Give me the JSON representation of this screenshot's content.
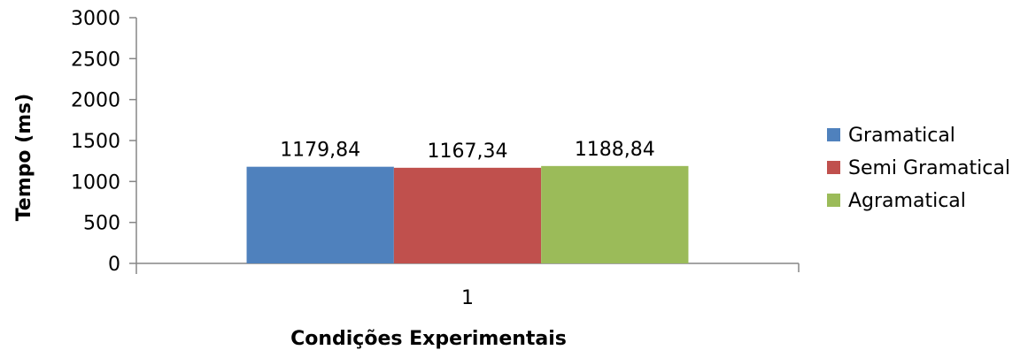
{
  "chart_data": {
    "type": "bar",
    "categories": [
      "1"
    ],
    "series": [
      {
        "name": "Gramatical",
        "values": [
          1179.84
        ],
        "label": "1179,84",
        "color": "#4F81BD"
      },
      {
        "name": "Semi Gramatical",
        "values": [
          1167.34
        ],
        "label": "1167,34",
        "color": "#C0504D"
      },
      {
        "name": "Agramatical",
        "values": [
          1188.84
        ],
        "label": "1188,84",
        "color": "#9BBB59"
      }
    ],
    "xlabel": "Condições Experimentais",
    "ylabel": "Tempo (ms)",
    "ylim": [
      0,
      3000
    ],
    "yticks": [
      "0",
      "500",
      "1000",
      "1500",
      "2000",
      "2500",
      "3000"
    ],
    "ytick_values": [
      0,
      500,
      1000,
      1500,
      2000,
      2500,
      3000
    ],
    "grid": false,
    "legend_position": "right"
  }
}
